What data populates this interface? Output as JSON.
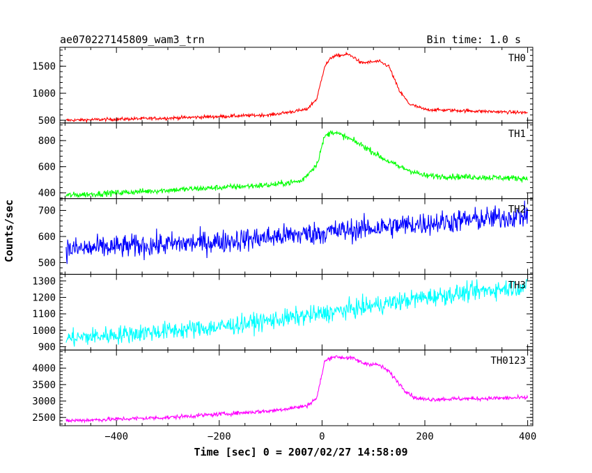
{
  "header": {
    "title": "ae070227145809_wam3_trn",
    "bin_time": "Bin time: 1.0 s"
  },
  "chart_data": {
    "type": "line",
    "xlabel": "Time [sec] 0 = 2007/02/27 14:58:09",
    "ylabel": "Counts/sec",
    "xlim": [
      -510,
      410
    ],
    "x_ticks": [
      -400,
      -200,
      0,
      200,
      400
    ],
    "x_tick_labels": [
      "−400",
      "−200",
      "0",
      "200",
      "400"
    ],
    "x_range": [
      -498,
      400
    ],
    "panels": [
      {
        "name": "TH0",
        "color": "#ff0000",
        "ylim": [
          450,
          1850
        ],
        "y_ticks": [
          500,
          1000,
          1500
        ],
        "noise": 22,
        "profile": [
          [
            -498,
            500
          ],
          [
            -300,
            540
          ],
          [
            -100,
            600
          ],
          [
            -30,
            700
          ],
          [
            -10,
            900
          ],
          [
            5,
            1500
          ],
          [
            20,
            1680
          ],
          [
            50,
            1720
          ],
          [
            65,
            1650
          ],
          [
            75,
            1560
          ],
          [
            110,
            1590
          ],
          [
            130,
            1500
          ],
          [
            150,
            1050
          ],
          [
            170,
            800
          ],
          [
            200,
            700
          ],
          [
            400,
            640
          ]
        ]
      },
      {
        "name": "TH1",
        "color": "#00ff00",
        "ylim": [
          355,
          935
        ],
        "y_ticks": [
          400,
          600,
          800
        ],
        "noise": 16,
        "profile": [
          [
            -498,
            380
          ],
          [
            -300,
            420
          ],
          [
            -100,
            460
          ],
          [
            -40,
            490
          ],
          [
            -10,
            620
          ],
          [
            5,
            830
          ],
          [
            20,
            870
          ],
          [
            50,
            820
          ],
          [
            80,
            760
          ],
          [
            120,
            660
          ],
          [
            150,
            600
          ],
          [
            200,
            530
          ],
          [
            300,
            520
          ],
          [
            400,
            510
          ]
        ]
      },
      {
        "name": "TH2",
        "color": "#0000ff",
        "ylim": [
          455,
          745
        ],
        "y_ticks": [
          500,
          600,
          700
        ],
        "noise": 32,
        "profile": [
          [
            -498,
            550
          ],
          [
            -200,
            580
          ],
          [
            0,
            615
          ],
          [
            200,
            650
          ],
          [
            400,
            680
          ]
        ]
      },
      {
        "name": "TH3",
        "color": "#00ffff",
        "ylim": [
          880,
          1340
        ],
        "y_ticks": [
          900,
          1000,
          1100,
          1200,
          1300
        ],
        "noise": 40,
        "profile": [
          [
            -498,
            950
          ],
          [
            -200,
            1020
          ],
          [
            0,
            1100
          ],
          [
            200,
            1200
          ],
          [
            400,
            1270
          ]
        ]
      },
      {
        "name": "TH0123",
        "color": "#ff00ff",
        "ylim": [
          2250,
          4550
        ],
        "y_ticks": [
          2500,
          3000,
          3500,
          4000
        ],
        "noise": 45,
        "profile": [
          [
            -498,
            2400
          ],
          [
            -300,
            2500
          ],
          [
            -100,
            2700
          ],
          [
            -30,
            2850
          ],
          [
            -10,
            3100
          ],
          [
            5,
            4200
          ],
          [
            20,
            4350
          ],
          [
            60,
            4300
          ],
          [
            80,
            4150
          ],
          [
            110,
            4100
          ],
          [
            130,
            3900
          ],
          [
            160,
            3350
          ],
          [
            180,
            3100
          ],
          [
            200,
            3050
          ],
          [
            400,
            3100
          ]
        ]
      }
    ]
  }
}
